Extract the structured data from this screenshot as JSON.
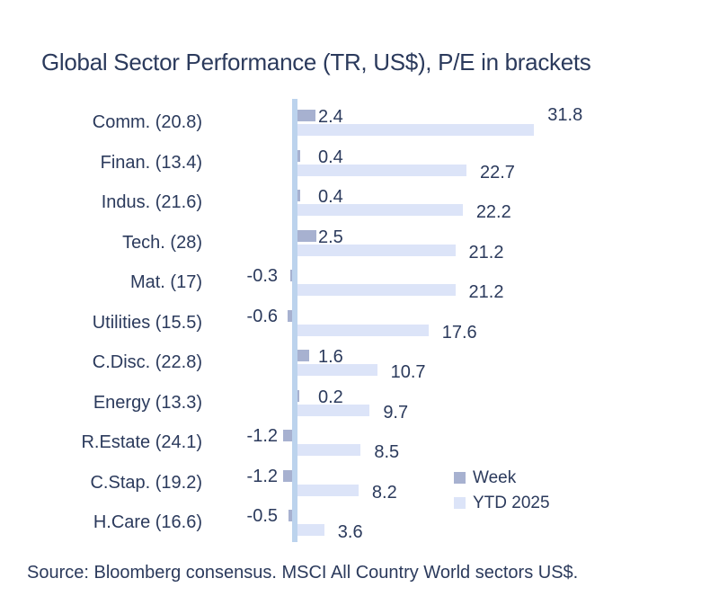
{
  "title": "Global Sector Performance (TR, US$), P/E in brackets",
  "source_note": "Source: Bloomberg consensus. MSCI All Country World sectors US$.",
  "legend": {
    "week_label": "Week",
    "ytd_label": "YTD 2025"
  },
  "colors": {
    "week_bar": "#a7b1d0",
    "ytd_bar": "#dce4f8",
    "axis_line": "#bcd3ed",
    "text": "#2b3a5c"
  },
  "chart_data": {
    "type": "bar",
    "orientation": "horizontal",
    "title": "Global Sector Performance (TR, US$), P/E in brackets",
    "categories": [
      "Comm. (20.8)",
      "Finan. (13.4)",
      "Indus. (21.6)",
      "Tech. (28)",
      "Mat. (17)",
      "Utilities (15.5)",
      "C.Disc. (22.8)",
      "Energy (13.3)",
      "R.Estate (24.1)",
      "C.Stap. (19.2)",
      "H.Care (16.6)"
    ],
    "series": [
      {
        "name": "Week",
        "values": [
          2.4,
          0.4,
          0.4,
          2.5,
          -0.3,
          -0.6,
          1.6,
          0.2,
          -1.2,
          -1.2,
          -0.5
        ]
      },
      {
        "name": "YTD 2025",
        "values": [
          31.8,
          22.7,
          22.2,
          21.2,
          21.2,
          17.6,
          10.7,
          9.7,
          8.5,
          8.2,
          3.6
        ]
      }
    ],
    "data_labels": true,
    "grid": false,
    "xlim": [
      -2,
      35
    ],
    "legend_position": "inside-bottom-right",
    "first_row_ytd_label_raised": true
  }
}
